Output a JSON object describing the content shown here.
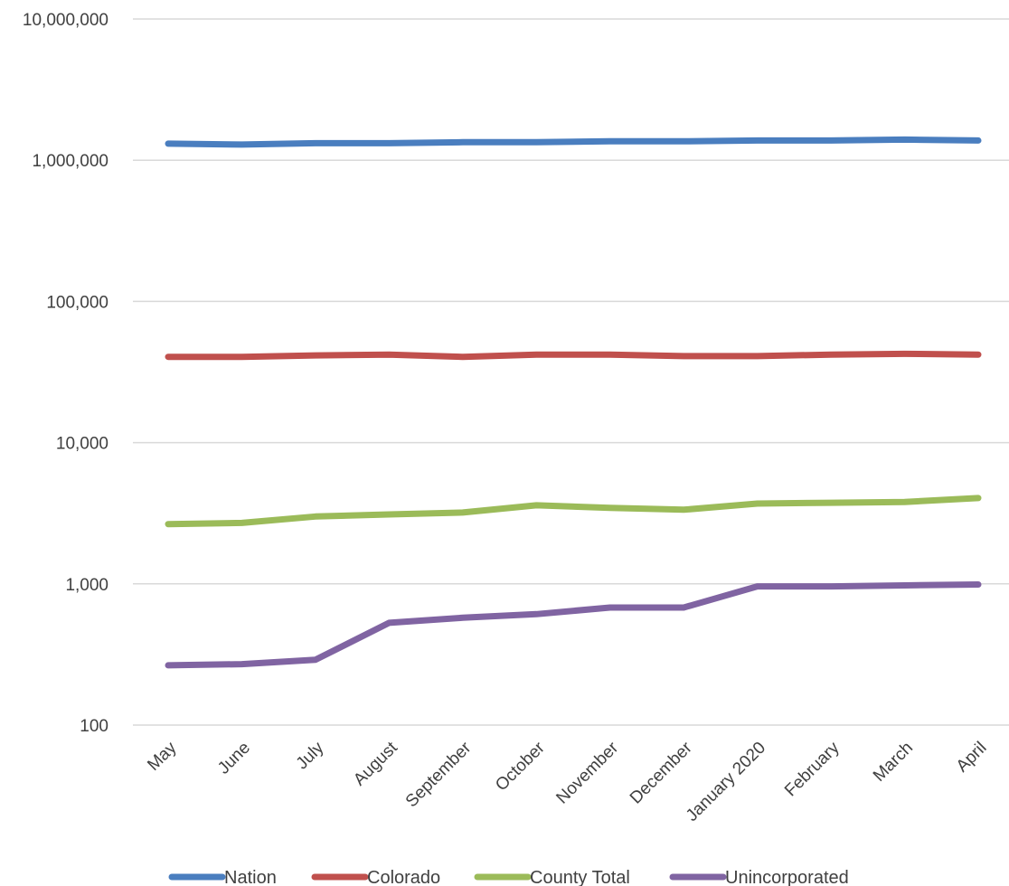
{
  "chart_data": {
    "type": "line",
    "title": "",
    "xlabel": "",
    "ylabel": "",
    "y_scale": "log",
    "ylim": [
      100,
      10000000
    ],
    "y_ticks": [
      {
        "value": 10000000,
        "label": "10,000,000"
      },
      {
        "value": 1000000,
        "label": "1,000,000"
      },
      {
        "value": 100000,
        "label": "100,000"
      },
      {
        "value": 10000,
        "label": "10,000"
      },
      {
        "value": 1000,
        "label": "1,000"
      },
      {
        "value": 100,
        "label": "100"
      }
    ],
    "grid": true,
    "legend_position": "bottom",
    "categories": [
      "May",
      "June",
      "July",
      "August",
      "September",
      "October",
      "November",
      "December",
      "January 2020",
      "February",
      "March",
      "April"
    ],
    "series": [
      {
        "name": "Nation",
        "color": "#4a7ebf",
        "values": [
          1310000,
          1290000,
          1320000,
          1320000,
          1340000,
          1340000,
          1360000,
          1360000,
          1380000,
          1380000,
          1400000,
          1380000
        ]
      },
      {
        "name": "Colorado",
        "color": "#c0504d",
        "values": [
          40500,
          40500,
          41500,
          42000,
          40500,
          42000,
          42000,
          41000,
          41000,
          42000,
          42500,
          42000
        ]
      },
      {
        "name": "County Total",
        "color": "#9bbb59",
        "values": [
          2650,
          2700,
          3000,
          3100,
          3200,
          3600,
          3450,
          3350,
          3700,
          3750,
          3800,
          4050
        ]
      },
      {
        "name": "Unincorporated",
        "color": "#8064a2",
        "values": [
          265,
          270,
          290,
          530,
          575,
          610,
          680,
          680,
          960,
          960,
          975,
          990
        ]
      }
    ]
  }
}
